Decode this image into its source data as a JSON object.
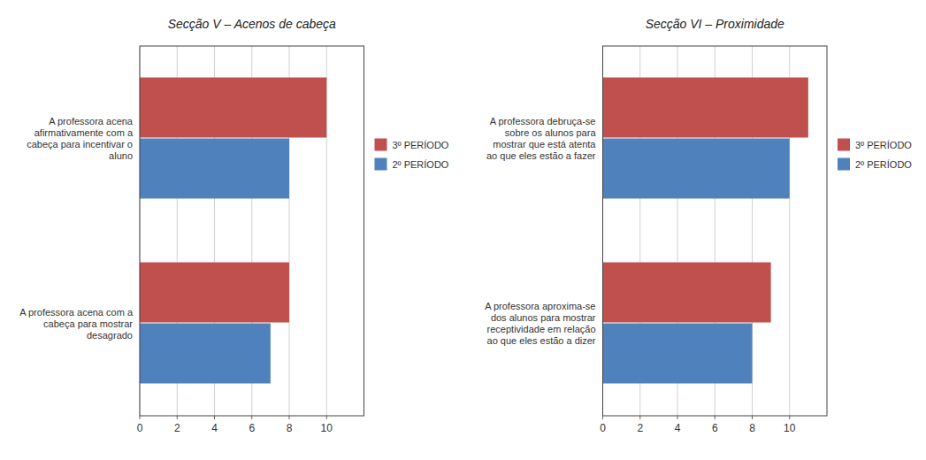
{
  "chart_data": [
    {
      "type": "bar",
      "orientation": "horizontal",
      "title": "Secção V – Acenos de cabeça",
      "categories": [
        "A professora acena com a\ncabeça para mostrar\ndesagrado",
        "A professora acena\nafirmativamente com a\ncabeça para incentivar o\naluno"
      ],
      "series": [
        {
          "name": "3º PERÍODO",
          "color": "#C0504D",
          "values": [
            8,
            10
          ]
        },
        {
          "name": "2º PERÍODO",
          "color": "#4F81BD",
          "values": [
            7,
            8
          ]
        }
      ],
      "xlim": [
        0,
        12
      ],
      "xticks": [
        0,
        2,
        4,
        6,
        8,
        10
      ],
      "grid": true,
      "legend": "right"
    },
    {
      "type": "bar",
      "orientation": "horizontal",
      "title": "Secção VI – Proximidade",
      "categories": [
        "A professora aproxima-se\ndos alunos para mostrar\nreceptividade em relação\nao que eles estão a dizer",
        "A professora debruça-se\nsobre os alunos para\nmostrar que está atenta\nao que eles estão a fazer"
      ],
      "series": [
        {
          "name": "3º PERÍODO",
          "color": "#C0504D",
          "values": [
            9,
            11
          ]
        },
        {
          "name": "2º PERÍODO",
          "color": "#4F81BD",
          "values": [
            8,
            10
          ]
        }
      ],
      "xlim": [
        0,
        12
      ],
      "xticks": [
        0,
        2,
        4,
        6,
        8,
        10
      ],
      "grid": true,
      "legend": "right"
    }
  ]
}
